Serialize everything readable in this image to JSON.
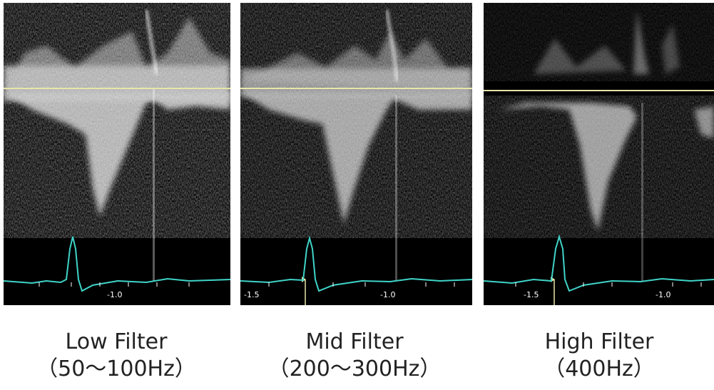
{
  "panels": [
    {
      "title": "Low Filter",
      "range": "（50〜100Hz）",
      "ticks": {
        "left": "",
        "right": "-1.0"
      }
    },
    {
      "title": "Mid Filter",
      "range": "（200〜300Hz）",
      "ticks": {
        "left": "-1.5",
        "right": "-1.0"
      }
    },
    {
      "title": "High Filter",
      "range": "（400Hz）",
      "ticks": {
        "left": "-1.5",
        "right": "-1.0"
      }
    }
  ],
  "colors": {
    "background": "#000000",
    "baseline": "#e8e6a8",
    "ecg_trace": "#3fd4c8",
    "spectrum": "#ffffff",
    "caption_text": "#222222"
  }
}
